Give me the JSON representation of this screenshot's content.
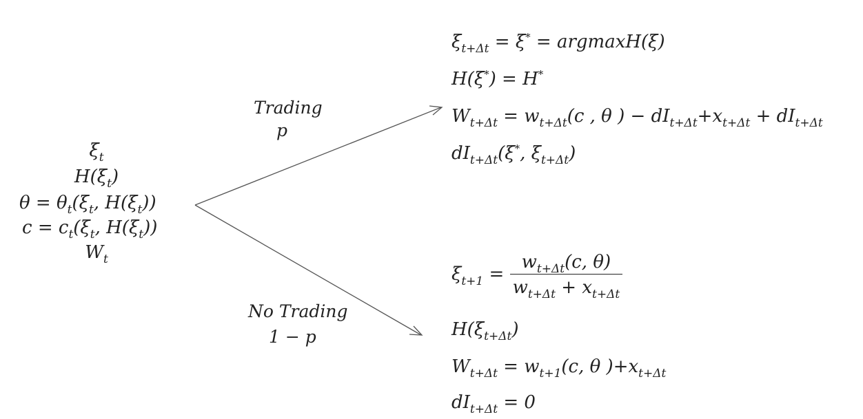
{
  "branch_labels": {
    "trading": "Trading",
    "trading_prob": "p",
    "no_trading": "No Trading",
    "no_trading_prob": "1 − p"
  },
  "state_now": {
    "xi": "ξ",
    "t": "t",
    "H_open": "H(ξ",
    "H_close": ")",
    "theta_lhs": "θ  = θ",
    "theta_args": "(ξ",
    "theta_mid": ", H(ξ",
    "theta_close": "))",
    "c_lhs": "c  = c",
    "c_args": "(ξ",
    "c_mid": ", H(ξ",
    "c_close": "))",
    "W": "W"
  },
  "trading_state": {
    "l1_a": "ξ",
    "l1_sub": "t+Δt",
    "l1_b": " = ξ",
    "l1_sup": "*",
    "l1_c": " = argmaxH(ξ)",
    "l2_a": "H(ξ",
    "l2_sup": "*",
    "l2_b": ")  = H",
    "l2_sup2": "*",
    "l3_a": "W",
    "l3_sub1": "t+Δt",
    "l3_b": " = w",
    "l3_sub2": "t+Δt",
    "l3_c": "(c , θ ) − dI",
    "l3_sub3": "t+Δt",
    "l3_d": "+x",
    "l3_sub4": "t+Δt",
    "l3_e": " + dI",
    "l3_sub5": "t+Δt",
    "l4_a": "dI",
    "l4_sub1": "t+Δt",
    "l4_b": "(ξ",
    "l4_sup": "*",
    "l4_c": ", ξ",
    "l4_sub2": "t+Δt",
    "l4_d": ")"
  },
  "no_trading_state": {
    "l1_a": "ξ",
    "l1_sub": "t+1",
    "l1_b": " = ",
    "num_a": "w",
    "num_sub": "t+Δt",
    "num_b": "(c, θ)",
    "den_a": "w",
    "den_sub1": "t+Δt",
    "den_b": " + x",
    "den_sub2": "t+Δt",
    "l2_a": "H(ξ",
    "l2_sub": "t+Δt",
    "l2_b": ")",
    "l3_a": "W",
    "l3_sub1": "t+Δt",
    "l3_b": " = w",
    "l3_sub2": "t+1",
    "l3_c": "(c, θ )+x",
    "l3_sub3": "t+Δt",
    "l4_a": "dI",
    "l4_sub": "t+Δt",
    "l4_b": " = 0"
  },
  "colors": {
    "arrow": "#555555",
    "text": "#222222"
  }
}
